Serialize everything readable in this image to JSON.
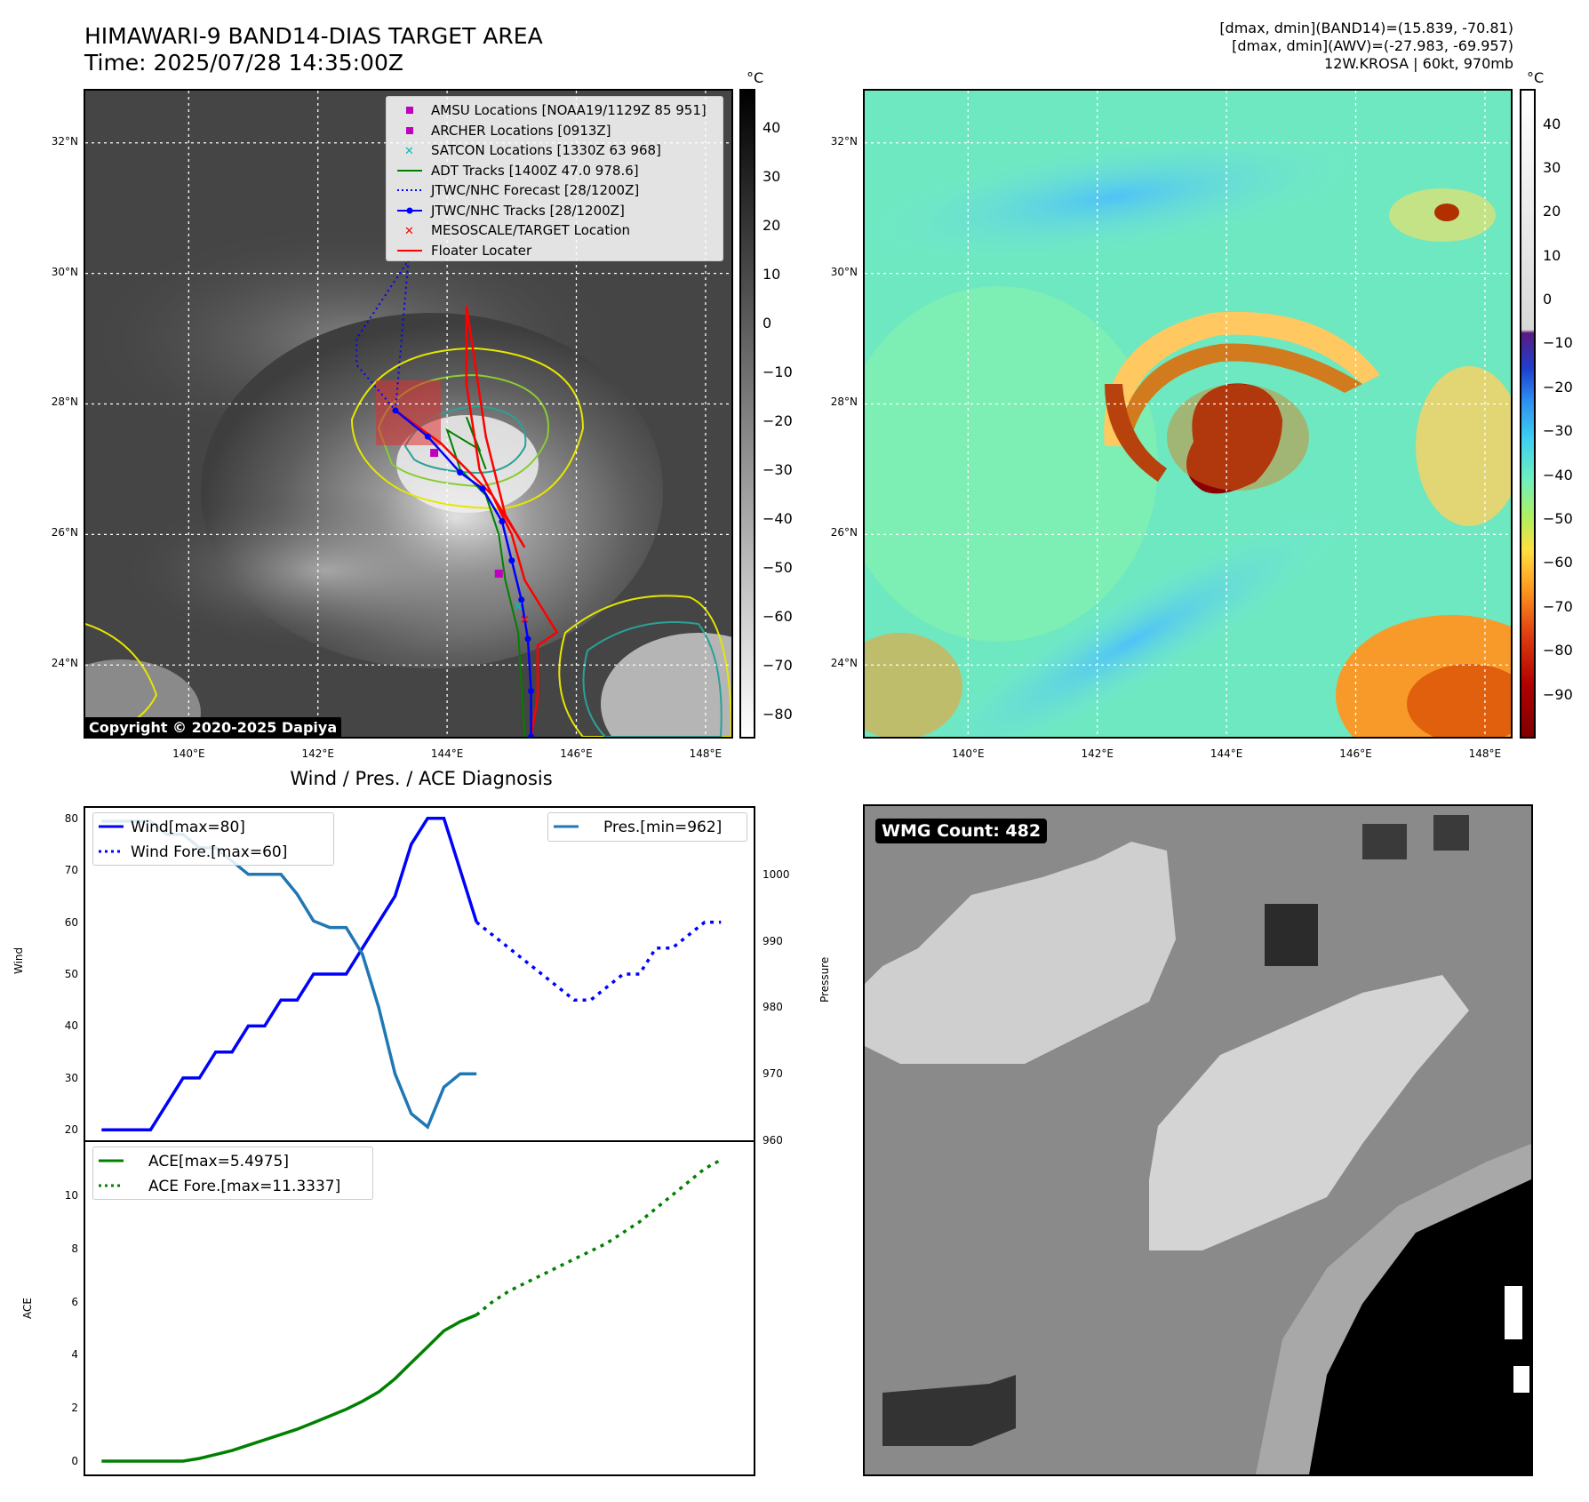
{
  "header": {
    "title_line1": "HIMAWARI-9 BAND14-DIAS TARGET AREA",
    "title_line2": "Time: 2025/07/28 14:35:00Z",
    "stats_line1": "[dmax, dmin](BAND14)=(15.839, -70.81)",
    "stats_line2": "[dmax, dmin](AWV)=(-27.983, -69.957)",
    "stats_line3": "12W.KROSA | 60kt, 970mb"
  },
  "map": {
    "lat_ticks": [
      "32°N",
      "30°N",
      "28°N",
      "26°N",
      "24°N"
    ],
    "lat_values": [
      32,
      30,
      28,
      26,
      24
    ],
    "lon_ticks": [
      "140°E",
      "142°E",
      "144°E",
      "146°E",
      "148°E"
    ],
    "lon_values": [
      140,
      142,
      144,
      146,
      148
    ],
    "lat_range": [
      22.9,
      32.8
    ],
    "lon_range": [
      138.4,
      148.4
    ],
    "copyright": "Copyright © 2020-2025 Dapiya",
    "colorbar_unit": "°C",
    "bw_colorbar_ticks": [
      "40",
      "30",
      "20",
      "10",
      "0",
      "−10",
      "−20",
      "−30",
      "−40",
      "−50",
      "−60",
      "−70",
      "−80"
    ],
    "color_colorbar_ticks": [
      "40",
      "30",
      "20",
      "10",
      "0",
      "−10",
      "−20",
      "−30",
      "−40",
      "−50",
      "−60",
      "−70",
      "−80",
      "−90"
    ],
    "legend": [
      {
        "label": "AMSU Locations [NOAA19/1129Z 85 951]",
        "marker": "square",
        "color": "#bf00bf"
      },
      {
        "label": "ARCHER Locations [0913Z]",
        "marker": "square",
        "color": "#bf00bf"
      },
      {
        "label": "SATCON Locations [1330Z 63 968]",
        "marker": "x",
        "color": "#00bfbf"
      },
      {
        "label": "ADT Tracks [1400Z 47.0 978.6]",
        "marker": "line",
        "color": "#008000"
      },
      {
        "label": "JTWC/NHC Forecast [28/1200Z]",
        "marker": "dotted",
        "color": "#0000ff"
      },
      {
        "label": "JTWC/NHC Tracks [28/1200Z]",
        "marker": "line-dot",
        "color": "#0000ff"
      },
      {
        "label": "MESOSCALE/TARGET Location",
        "marker": "x",
        "color": "#ff0000"
      },
      {
        "label": "Floater Locater",
        "marker": "line",
        "color": "#ff0000"
      }
    ],
    "jtwc_track": [
      [
        145.3,
        22.9
      ],
      [
        145.3,
        23.6
      ],
      [
        145.25,
        24.4
      ],
      [
        145.15,
        25.0
      ],
      [
        145.0,
        25.6
      ],
      [
        144.85,
        26.2
      ],
      [
        144.55,
        26.7
      ],
      [
        144.2,
        26.95
      ],
      [
        143.7,
        27.5
      ],
      [
        143.2,
        27.9
      ],
      [
        142.6,
        28.6
      ],
      [
        142.6,
        29.0
      ],
      [
        143.0,
        29.6
      ],
      [
        143.4,
        30.2
      ]
    ],
    "forecast_track_points": [
      [
        143.4,
        30.2
      ],
      [
        143.0,
        29.6
      ],
      [
        142.6,
        29.0
      ],
      [
        142.6,
        28.6
      ],
      [
        143.2,
        27.9
      ]
    ],
    "adt_track": [
      [
        145.2,
        22.9
      ],
      [
        145.1,
        24.5
      ],
      [
        144.9,
        25.3
      ],
      [
        144.8,
        26.0
      ],
      [
        144.6,
        26.6
      ],
      [
        144.2,
        27.0
      ],
      [
        144.0,
        27.6
      ],
      [
        144.5,
        27.3
      ],
      [
        144.3,
        27.8
      ],
      [
        144.6,
        27.0
      ]
    ],
    "floater_track": [
      [
        145.3,
        22.9
      ],
      [
        145.4,
        23.5
      ],
      [
        145.4,
        24.3
      ],
      [
        145.7,
        24.5
      ],
      [
        145.2,
        25.3
      ],
      [
        145.0,
        26.0
      ],
      [
        144.5,
        27.0
      ],
      [
        144.3,
        28.3
      ],
      [
        144.3,
        29.5
      ],
      [
        144.6,
        27.5
      ],
      [
        144.9,
        26.3
      ],
      [
        145.2,
        25.8
      ],
      [
        144.7,
        26.6
      ],
      [
        143.9,
        27.4
      ],
      [
        143.2,
        27.9
      ]
    ],
    "amsu_location": [
      144.8,
      25.4
    ],
    "archer_location": [
      143.8,
      27.25
    ],
    "satcon_location": [
      145.1,
      24.9
    ],
    "target_location": [
      145.2,
      24.7
    ]
  },
  "wmg": {
    "badge": "WMG Count: 482"
  },
  "chart_data": [
    {
      "type": "line",
      "title": "Wind / Pres. / ACE Diagnosis",
      "ylabel": "Wind",
      "ylim": [
        18,
        82
      ],
      "yticks": [
        "80",
        "70",
        "60",
        "50",
        "40",
        "30",
        "20"
      ],
      "ytick_values": [
        80,
        70,
        60,
        50,
        40,
        30,
        20
      ],
      "series": [
        {
          "name": "Wind[max=80]",
          "style": "solid",
          "color": "#0000ff",
          "x": [
            0,
            1,
            2,
            3,
            4,
            5,
            6,
            7,
            8,
            9,
            10,
            11,
            12,
            13,
            14,
            15,
            16,
            17,
            18,
            19,
            20,
            21,
            22,
            23
          ],
          "values": [
            20,
            20,
            20,
            20,
            25,
            30,
            30,
            35,
            35,
            40,
            40,
            45,
            45,
            50,
            50,
            50,
            55,
            60,
            65,
            75,
            80,
            80,
            70,
            60
          ]
        },
        {
          "name": "Wind Fore.[max=60]",
          "style": "dotted",
          "color": "#0000ff",
          "x": [
            23,
            24,
            25,
            26,
            27,
            28,
            29,
            30,
            31,
            32,
            33,
            34,
            35,
            36,
            37,
            38
          ],
          "values": [
            60,
            57.5,
            55,
            52.5,
            50,
            47.5,
            45,
            45,
            47.5,
            50,
            50,
            55,
            55,
            57.5,
            60,
            60
          ]
        }
      ],
      "secondary": {
        "ylabel": "Pressure",
        "ylim": [
          960,
          1010
        ],
        "yticks": [
          "1000",
          "990",
          "980",
          "970",
          "960"
        ],
        "ytick_values": [
          1000,
          990,
          980,
          970,
          960
        ],
        "series": [
          {
            "name": "Pres.[min=962]",
            "style": "solid",
            "color": "#1f77b4",
            "x": [
              0,
              1,
              2,
              3,
              4,
              5,
              6,
              7,
              8,
              9,
              10,
              11,
              12,
              13,
              14,
              15,
              16,
              17,
              18,
              19,
              20,
              21,
              22,
              23
            ],
            "values": [
              1008,
              1008,
              1008,
              1008,
              1006,
              1006,
              1004,
              1004,
              1002,
              1000,
              1000,
              1000,
              997,
              993,
              992,
              992,
              988,
              980,
              970,
              964,
              962,
              968,
              970,
              970
            ]
          }
        ]
      },
      "xlim": [
        -1,
        40
      ]
    },
    {
      "type": "line",
      "ylabel": "ACE",
      "ylim": [
        -0.5,
        12
      ],
      "yticks": [
        "10",
        "8",
        "6",
        "4",
        "2",
        "0"
      ],
      "ytick_values": [
        10,
        8,
        6,
        4,
        2,
        0
      ],
      "series": [
        {
          "name": "ACE[max=5.4975]",
          "style": "solid",
          "color": "#008000",
          "x": [
            0,
            1,
            2,
            3,
            4,
            5,
            6,
            7,
            8,
            9,
            10,
            11,
            12,
            13,
            14,
            15,
            16,
            17,
            18,
            19,
            20,
            21,
            22,
            23
          ],
          "values": [
            0,
            0,
            0,
            0,
            0,
            0,
            0.1,
            0.25,
            0.4,
            0.6,
            0.8,
            1.0,
            1.2,
            1.45,
            1.7,
            1.95,
            2.25,
            2.6,
            3.1,
            3.7,
            4.3,
            4.9,
            5.25,
            5.5
          ]
        },
        {
          "name": "ACE Fore.[max=11.3337]",
          "style": "dotted",
          "color": "#008000",
          "x": [
            23,
            24,
            25,
            26,
            27,
            28,
            29,
            30,
            31,
            32,
            33,
            34,
            35,
            36,
            37,
            38
          ],
          "values": [
            5.5,
            6.0,
            6.4,
            6.7,
            7.0,
            7.3,
            7.6,
            7.9,
            8.2,
            8.6,
            9.0,
            9.5,
            10.0,
            10.5,
            11.0,
            11.33
          ]
        }
      ],
      "xlim": [
        -1,
        40
      ]
    }
  ]
}
